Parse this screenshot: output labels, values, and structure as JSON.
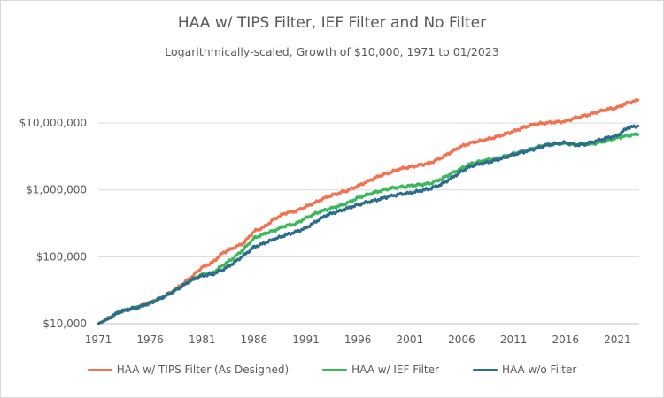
{
  "chart_data": {
    "type": "line",
    "title": "HAA w/ TIPS Filter, IEF Filter and No Filter",
    "subtitle": "Logarithmically-scaled, Growth of $10,000, 1971 to 01/2023",
    "xlabel": "",
    "ylabel": "",
    "y_scale": "log",
    "xlim": [
      1971,
      2023.1
    ],
    "ylim": [
      10000,
      30000000
    ],
    "x_ticks": [
      1971,
      1976,
      1981,
      1986,
      1991,
      1996,
      2001,
      2006,
      2011,
      2016,
      2021
    ],
    "x_tick_labels": [
      "1971",
      "1976",
      "1981",
      "1986",
      "1991",
      "1996",
      "2001",
      "2006",
      "2011",
      "2016",
      "2021"
    ],
    "y_ticks": [
      10000,
      100000,
      1000000,
      10000000
    ],
    "y_tick_labels": [
      "$10,000",
      "$100,000",
      "$1,000,000",
      "$10,000,000"
    ],
    "grid": "horizontal",
    "legend_position": "bottom",
    "x": [
      1971,
      1972,
      1973,
      1974,
      1975,
      1976,
      1977,
      1978,
      1979,
      1980,
      1981,
      1982,
      1983,
      1984,
      1985,
      1986,
      1987,
      1988,
      1989,
      1990,
      1991,
      1992,
      1993,
      1994,
      1995,
      1996,
      1997,
      1998,
      1999,
      2000,
      2001,
      2002,
      2003,
      2004,
      2005,
      2006,
      2007,
      2008,
      2009,
      2010,
      2011,
      2012,
      2013,
      2014,
      2015,
      2016,
      2017,
      2018,
      2019,
      2020,
      2021,
      2022,
      2023
    ],
    "series": [
      {
        "name": "HAA w/ TIPS Filter (As Designed)",
        "color": "#f4714f",
        "values": [
          10000,
          12000,
          15000,
          16500,
          18000,
          20500,
          24000,
          29000,
          38000,
          50000,
          70000,
          82000,
          115000,
          135000,
          160000,
          240000,
          280000,
          370000,
          450000,
          480000,
          560000,
          660000,
          780000,
          880000,
          980000,
          1150000,
          1350000,
          1600000,
          1800000,
          2050000,
          2200000,
          2350000,
          2550000,
          3000000,
          3700000,
          4500000,
          5100000,
          5500000,
          6000000,
          6700000,
          7500000,
          8600000,
          9600000,
          10000000,
          10300000,
          10600000,
          12000000,
          13000000,
          14500000,
          16000000,
          17000000,
          20000000,
          22000000
        ]
      },
      {
        "name": "HAA w/ IEF Filter",
        "color": "#3bb85c",
        "values": [
          10000,
          12000,
          15000,
          16500,
          18000,
          20500,
          24000,
          29000,
          36000,
          45000,
          55000,
          57000,
          75000,
          95000,
          130000,
          190000,
          220000,
          250000,
          290000,
          310000,
          380000,
          450000,
          510000,
          560000,
          640000,
          760000,
          860000,
          950000,
          1050000,
          1100000,
          1150000,
          1200000,
          1250000,
          1450000,
          1750000,
          2100000,
          2500000,
          2700000,
          2900000,
          3100000,
          3500000,
          3800000,
          4200000,
          4700000,
          4900000,
          5000000,
          4700000,
          4800000,
          5000000,
          5500000,
          6000000,
          6500000,
          6800000
        ]
      },
      {
        "name": "HAA w/o Filter",
        "color": "#2d6d8c",
        "values": [
          10000,
          12000,
          15000,
          16500,
          18000,
          20500,
          24000,
          29000,
          36000,
          45000,
          52000,
          55000,
          64000,
          80000,
          105000,
          140000,
          160000,
          185000,
          210000,
          235000,
          270000,
          340000,
          420000,
          470000,
          530000,
          600000,
          660000,
          720000,
          800000,
          860000,
          900000,
          970000,
          1050000,
          1200000,
          1500000,
          1900000,
          2300000,
          2500000,
          2700000,
          3000000,
          3400000,
          3700000,
          4100000,
          4600000,
          4900000,
          5100000,
          4700000,
          4900000,
          5400000,
          6000000,
          6500000,
          8500000,
          9000000
        ]
      }
    ]
  }
}
